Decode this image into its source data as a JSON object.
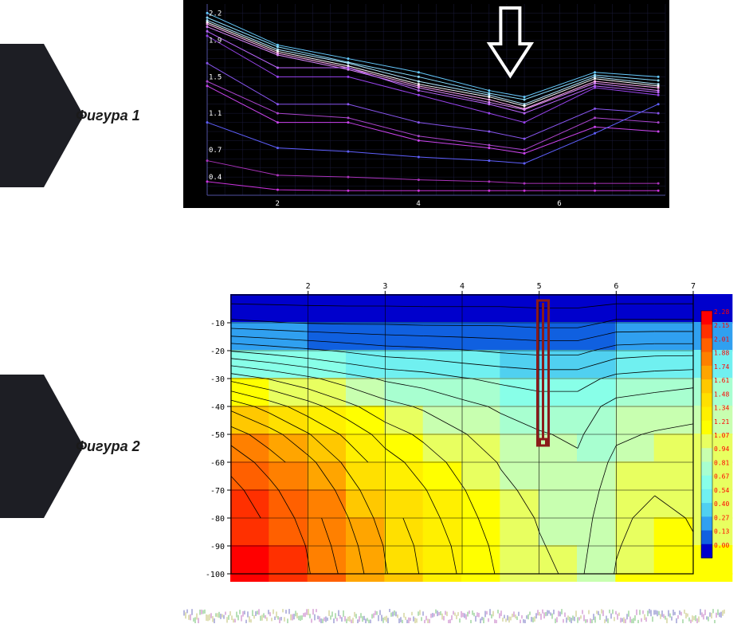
{
  "labels": {
    "fig1": "Фигура 1",
    "fig2": "Фигура 2"
  },
  "arrow_shape": {
    "fill": "#1d1e24",
    "stroke": "#1d1e24"
  },
  "fig1_chart": {
    "type": "line",
    "background": "#000000",
    "grid_color": "#1a1a3a",
    "axis_color": "#5050a0",
    "axis_label_color": "#ffffff",
    "axis_fontsize": 9,
    "x_ticks": [
      2,
      4,
      6
    ],
    "y_ticks": [
      0.4,
      0.7,
      1.1,
      1.5,
      1.9,
      2.2
    ],
    "y_tick_labels": [
      "0.4",
      "0.7",
      "1.1",
      "1.5",
      "1.9",
      "2.2"
    ],
    "xlim": [
      1,
      7.5
    ],
    "ylim": [
      0.2,
      2.3
    ],
    "arrow_marker": {
      "x": 5.3,
      "stroke": "#ffffff",
      "stroke_width": 4
    },
    "series": [
      {
        "color": "#66ccff",
        "y": [
          2.2,
          1.85,
          1.7,
          1.55,
          1.35,
          1.28,
          1.55,
          1.5
        ]
      },
      {
        "color": "#88ddff",
        "y": [
          2.15,
          1.83,
          1.66,
          1.5,
          1.32,
          1.25,
          1.52,
          1.46
        ]
      },
      {
        "color": "#b0e8ff",
        "y": [
          2.12,
          1.8,
          1.65,
          1.45,
          1.3,
          1.2,
          1.5,
          1.42
        ]
      },
      {
        "color": "#ffffff",
        "y": [
          2.1,
          1.78,
          1.62,
          1.42,
          1.28,
          1.18,
          1.48,
          1.4
        ]
      },
      {
        "color": "#ffb0f0",
        "y": [
          2.08,
          1.76,
          1.6,
          1.4,
          1.25,
          1.15,
          1.45,
          1.38
        ]
      },
      {
        "color": "#dd88ff",
        "y": [
          2.05,
          1.74,
          1.58,
          1.38,
          1.22,
          1.14,
          1.43,
          1.35
        ]
      },
      {
        "color": "#bb66ff",
        "y": [
          2.0,
          1.6,
          1.6,
          1.35,
          1.2,
          1.1,
          1.4,
          1.33
        ]
      },
      {
        "color": "#9944ee",
        "y": [
          1.95,
          1.5,
          1.5,
          1.3,
          1.1,
          1.0,
          1.38,
          1.3
        ]
      },
      {
        "color": "#8855ee",
        "y": [
          1.65,
          1.2,
          1.2,
          1.0,
          0.9,
          0.82,
          1.15,
          1.1
        ]
      },
      {
        "color": "#aa44cc",
        "y": [
          1.45,
          1.1,
          1.05,
          0.85,
          0.75,
          0.7,
          1.05,
          1.0
        ]
      },
      {
        "color": "#cc44ee",
        "y": [
          1.4,
          1.0,
          1.0,
          0.8,
          0.72,
          0.66,
          0.95,
          0.9
        ]
      },
      {
        "color": "#6060ff",
        "y": [
          1.0,
          0.72,
          0.68,
          0.62,
          0.58,
          0.55,
          0.88,
          1.2
        ]
      },
      {
        "color": "#aa33bb",
        "y": [
          0.58,
          0.42,
          0.4,
          0.37,
          0.35,
          0.33,
          0.33,
          0.33
        ]
      },
      {
        "color": "#cc33dd",
        "y": [
          0.35,
          0.26,
          0.25,
          0.25,
          0.25,
          0.25,
          0.25,
          0.25
        ]
      }
    ],
    "x_points": [
      1,
      2,
      3,
      4,
      5,
      5.5,
      6.5,
      7.4
    ]
  },
  "fig2_chart": {
    "type": "heatmap",
    "background": "#ffffff",
    "axis_color": "#000000",
    "axis_fontsize": 10,
    "x_ticks": [
      2,
      3,
      4,
      5,
      6,
      7
    ],
    "y_ticks": [
      -10,
      -20,
      -30,
      -40,
      -50,
      -60,
      -70,
      -80,
      -90,
      -100
    ],
    "xlim": [
      1,
      7
    ],
    "ylim": [
      -100,
      0
    ],
    "marker": {
      "x": 5.05,
      "y_top": -2,
      "y_bot": -54,
      "stroke": "#8b1a1a",
      "stroke_width": 3
    },
    "contour_color": "#000000",
    "grid_color": "#000000",
    "legend": {
      "values": [
        "2.28",
        "2.15",
        "2.01",
        "1.88",
        "1.74",
        "1.61",
        "1.48",
        "1.34",
        "1.21",
        "1.07",
        "0.94",
        "0.81",
        "0.67",
        "0.54",
        "0.40",
        "0.27",
        "0.13",
        "0.00"
      ],
      "colors": [
        "#ff0000",
        "#ff3000",
        "#ff6000",
        "#ff8000",
        "#ffa500",
        "#ffc800",
        "#ffe000",
        "#fff000",
        "#ffff00",
        "#e8ff60",
        "#c8ffb0",
        "#a8ffd0",
        "#88ffe8",
        "#70f0f0",
        "#50d0f0",
        "#30a0f0",
        "#1060e0",
        "#0000cc"
      ],
      "fontsize": 8,
      "text_color": "#ff0000"
    },
    "field": {
      "nx": 13,
      "ny": 11,
      "z": [
        [
          0.05,
          0.05,
          0.05,
          0.05,
          0.05,
          0.05,
          0.05,
          0.05,
          0.05,
          0.05,
          0.05,
          0.05,
          0.05
        ],
        [
          0.3,
          0.28,
          0.26,
          0.25,
          0.25,
          0.24,
          0.24,
          0.24,
          0.22,
          0.22,
          0.3,
          0.3,
          0.3
        ],
        [
          0.8,
          0.75,
          0.7,
          0.65,
          0.6,
          0.58,
          0.55,
          0.52,
          0.5,
          0.5,
          0.6,
          0.62,
          0.62
        ],
        [
          1.3,
          1.2,
          1.1,
          1.0,
          0.92,
          0.88,
          0.82,
          0.78,
          0.75,
          0.75,
          0.85,
          0.88,
          0.9
        ],
        [
          1.7,
          1.55,
          1.4,
          1.25,
          1.12,
          1.05,
          0.98,
          0.92,
          0.88,
          0.88,
          0.98,
          1.0,
          1.02
        ],
        [
          1.95,
          1.8,
          1.62,
          1.45,
          1.28,
          1.18,
          1.08,
          1.0,
          0.95,
          0.92,
          1.05,
          1.08,
          1.1
        ],
        [
          2.1,
          1.95,
          1.78,
          1.58,
          1.4,
          1.28,
          1.16,
          1.06,
          1.0,
          0.96,
          1.1,
          1.15,
          1.15
        ],
        [
          2.2,
          2.05,
          1.88,
          1.68,
          1.48,
          1.35,
          1.22,
          1.1,
          1.03,
          0.98,
          1.14,
          1.2,
          1.18
        ],
        [
          2.25,
          2.12,
          1.95,
          1.75,
          1.55,
          1.4,
          1.26,
          1.14,
          1.06,
          1.0,
          1.18,
          1.25,
          1.2
        ],
        [
          2.28,
          2.15,
          2.0,
          1.8,
          1.6,
          1.44,
          1.3,
          1.17,
          1.08,
          1.02,
          1.2,
          1.28,
          1.22
        ],
        [
          2.28,
          2.18,
          2.02,
          1.84,
          1.62,
          1.46,
          1.32,
          1.19,
          1.1,
          1.04,
          1.22,
          1.3,
          1.24
        ]
      ]
    }
  },
  "bottom_strip": {
    "colors": [
      "#8888cc",
      "#cc88cc",
      "#88cc88",
      "#cccc88",
      "#8888cc",
      "#cc88cc",
      "#88cc88",
      "#cccc88"
    ]
  }
}
